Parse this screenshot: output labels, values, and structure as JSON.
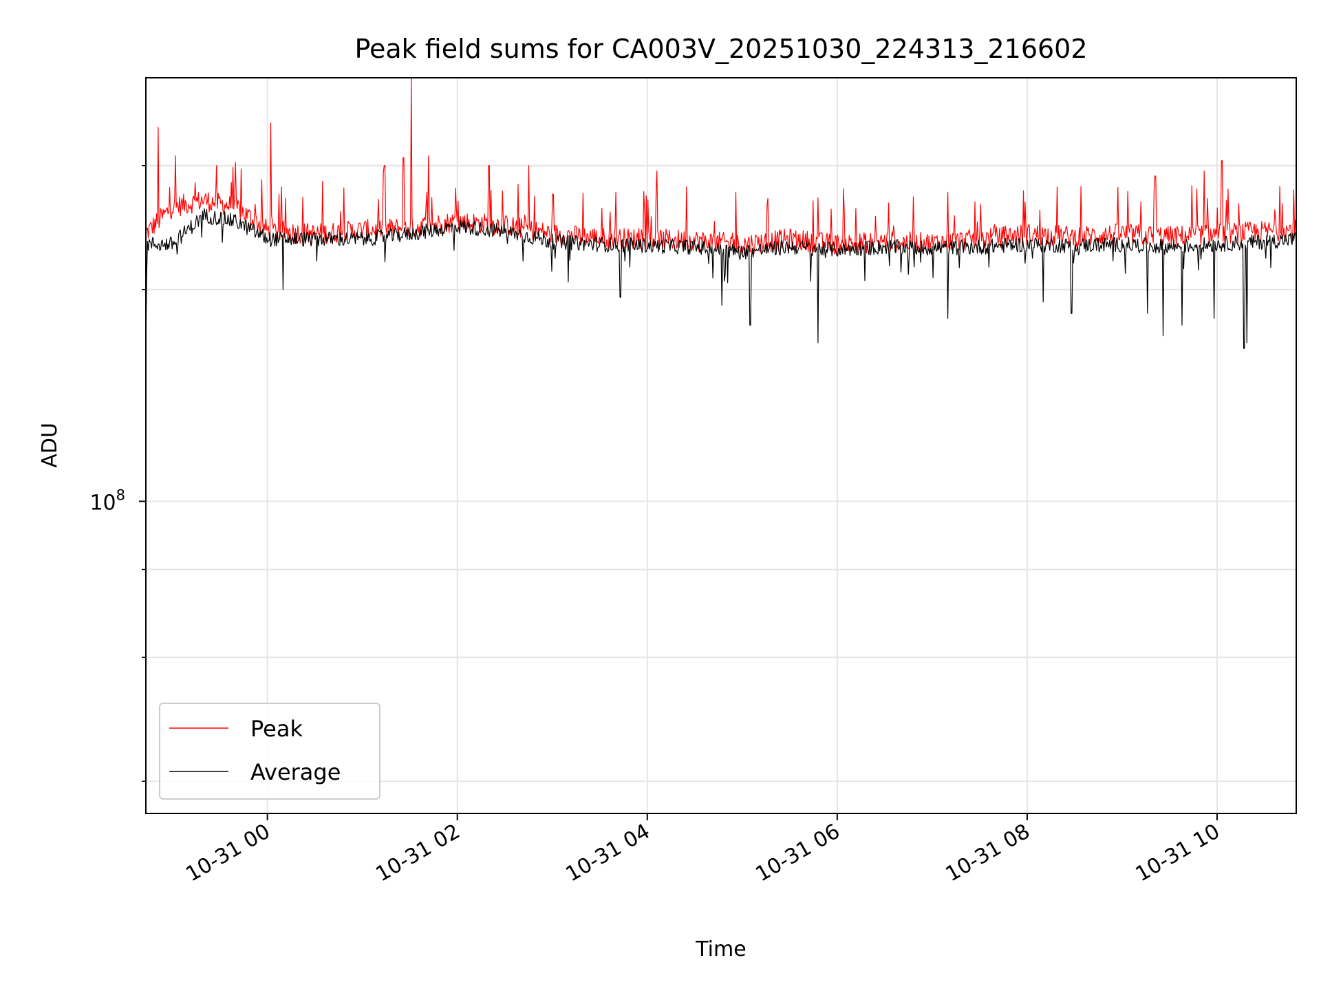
{
  "chart_data": {
    "type": "line",
    "title": "Peak field sums for CA003V_20251030_224313_216602",
    "xlabel": "Time",
    "ylabel": "ADU",
    "yscale": "log",
    "grid": true,
    "legend_position": "lower-left",
    "x_start": "2025-10-30 22:43:13",
    "x_end": "2025-10-31 10:50:00",
    "ylim": [
      36000000,
      400000000
    ],
    "x_ticks": [
      {
        "label": "10-31 00",
        "time": "2025-10-31 00:00"
      },
      {
        "label": "10-31 02",
        "time": "2025-10-31 02:00"
      },
      {
        "label": "10-31 04",
        "time": "2025-10-31 04:00"
      },
      {
        "label": "10-31 06",
        "time": "2025-10-31 06:00"
      },
      {
        "label": "10-31 08",
        "time": "2025-10-31 08:00"
      },
      {
        "label": "10-31 10",
        "time": "2025-10-31 10:00"
      }
    ],
    "y_major_tick": {
      "value": 100000000,
      "label_base": "10",
      "label_exp": "8"
    },
    "y_minor_ticks": [
      40000000,
      50000000,
      60000000,
      70000000,
      80000000,
      90000000,
      200000000,
      300000000
    ],
    "y_minor_ticks_visible": [
      40000000,
      60000000,
      80000000,
      200000000,
      300000000
    ],
    "series": [
      {
        "name": "Peak",
        "color": "#ff0000",
        "points": [
          [
            "2025-10-30 22:43",
            240000000
          ],
          [
            "2025-10-30 23:00",
            262000000
          ],
          [
            "2025-10-30 23:20",
            268000000
          ],
          [
            "2025-10-30 23:40",
            262000000
          ],
          [
            "2025-10-31 00:00",
            243000000
          ],
          [
            "2025-10-31 00:30",
            240000000
          ],
          [
            "2025-10-31 01:00",
            243000000
          ],
          [
            "2025-10-31 01:30",
            245000000
          ],
          [
            "2025-10-31 02:00",
            250000000
          ],
          [
            "2025-10-31 02:30",
            247000000
          ],
          [
            "2025-10-31 03:00",
            240000000
          ],
          [
            "2025-10-31 03:30",
            237000000
          ],
          [
            "2025-10-31 04:00",
            236000000
          ],
          [
            "2025-10-31 04:30",
            235000000
          ],
          [
            "2025-10-31 05:00",
            232000000
          ],
          [
            "2025-10-31 05:30",
            236000000
          ],
          [
            "2025-10-31 06:00",
            232000000
          ],
          [
            "2025-10-31 06:30",
            234000000
          ],
          [
            "2025-10-31 07:00",
            233000000
          ],
          [
            "2025-10-31 07:30",
            236000000
          ],
          [
            "2025-10-31 08:00",
            240000000
          ],
          [
            "2025-10-31 08:30",
            238000000
          ],
          [
            "2025-10-31 09:00",
            240000000
          ],
          [
            "2025-10-31 09:30",
            238000000
          ],
          [
            "2025-10-31 10:00",
            240000000
          ],
          [
            "2025-10-31 10:30",
            242000000
          ],
          [
            "2025-10-31 10:50",
            243000000
          ]
        ],
        "spikes": [
          [
            "2025-10-30 22:51",
            340000000
          ],
          [
            "2025-10-30 23:02",
            310000000
          ],
          [
            "2025-10-30 23:28",
            300000000
          ],
          [
            "2025-10-30 23:40",
            303000000
          ],
          [
            "2025-10-31 00:02",
            345000000
          ],
          [
            "2025-10-31 00:35",
            285000000
          ],
          [
            "2025-10-31 01:14",
            300000000
          ],
          [
            "2025-10-31 01:26",
            308000000
          ],
          [
            "2025-10-31 01:31",
            420000000
          ],
          [
            "2025-10-31 01:42",
            310000000
          ],
          [
            "2025-10-31 02:20",
            300000000
          ],
          [
            "2025-10-31 02:45",
            300000000
          ],
          [
            "2025-10-31 03:40",
            275000000
          ],
          [
            "2025-10-31 04:06",
            295000000
          ],
          [
            "2025-10-31 04:25",
            280000000
          ],
          [
            "2025-10-31 04:56",
            275000000
          ],
          [
            "2025-10-31 05:48",
            270000000
          ],
          [
            "2025-10-31 07:10",
            275000000
          ],
          [
            "2025-10-31 08:19",
            280000000
          ],
          [
            "2025-10-31 09:21",
            290000000
          ],
          [
            "2025-10-31 09:52",
            295000000
          ],
          [
            "2025-10-31 10:03",
            305000000
          ],
          [
            "2025-10-31 10:41",
            265000000
          ]
        ]
      },
      {
        "name": "Average",
        "color": "#000000",
        "points": [
          [
            "2025-10-30 22:43",
            165000000
          ],
          [
            "2025-10-30 22:44",
            232000000
          ],
          [
            "2025-10-30 23:00",
            232000000
          ],
          [
            "2025-10-30 23:20",
            255000000
          ],
          [
            "2025-10-30 23:40",
            250000000
          ],
          [
            "2025-10-31 00:00",
            236000000
          ],
          [
            "2025-10-31 00:30",
            236000000
          ],
          [
            "2025-10-31 01:00",
            236000000
          ],
          [
            "2025-10-31 01:30",
            240000000
          ],
          [
            "2025-10-31 02:00",
            246000000
          ],
          [
            "2025-10-31 02:30",
            242000000
          ],
          [
            "2025-10-31 03:00",
            234000000
          ],
          [
            "2025-10-31 03:30",
            232000000
          ],
          [
            "2025-10-31 04:00",
            231000000
          ],
          [
            "2025-10-31 04:30",
            230000000
          ],
          [
            "2025-10-31 05:00",
            226000000
          ],
          [
            "2025-10-31 05:30",
            230000000
          ],
          [
            "2025-10-31 06:00",
            228000000
          ],
          [
            "2025-10-31 06:30",
            230000000
          ],
          [
            "2025-10-31 07:00",
            229000000
          ],
          [
            "2025-10-31 07:30",
            230000000
          ],
          [
            "2025-10-31 08:00",
            232000000
          ],
          [
            "2025-10-31 08:30",
            231000000
          ],
          [
            "2025-10-31 09:00",
            232000000
          ],
          [
            "2025-10-31 09:30",
            230000000
          ],
          [
            "2025-10-31 10:00",
            232000000
          ],
          [
            "2025-10-31 10:30",
            234000000
          ],
          [
            "2025-10-31 10:50",
            236000000
          ]
        ],
        "dips": [
          [
            "2025-10-31 00:10",
            200000000
          ],
          [
            "2025-10-31 03:10",
            205000000
          ],
          [
            "2025-10-31 03:43",
            195000000
          ],
          [
            "2025-10-31 04:47",
            190000000
          ],
          [
            "2025-10-31 05:05",
            178000000
          ],
          [
            "2025-10-31 05:48",
            168000000
          ],
          [
            "2025-10-31 07:10",
            182000000
          ],
          [
            "2025-10-31 08:10",
            192000000
          ],
          [
            "2025-10-31 08:28",
            185000000
          ],
          [
            "2025-10-31 09:16",
            185000000
          ],
          [
            "2025-10-31 09:26",
            172000000
          ],
          [
            "2025-10-31 09:38",
            178000000
          ],
          [
            "2025-10-31 09:58",
            182000000
          ],
          [
            "2025-10-31 10:17",
            165000000
          ],
          [
            "2025-10-31 10:19",
            168000000
          ]
        ]
      }
    ]
  }
}
